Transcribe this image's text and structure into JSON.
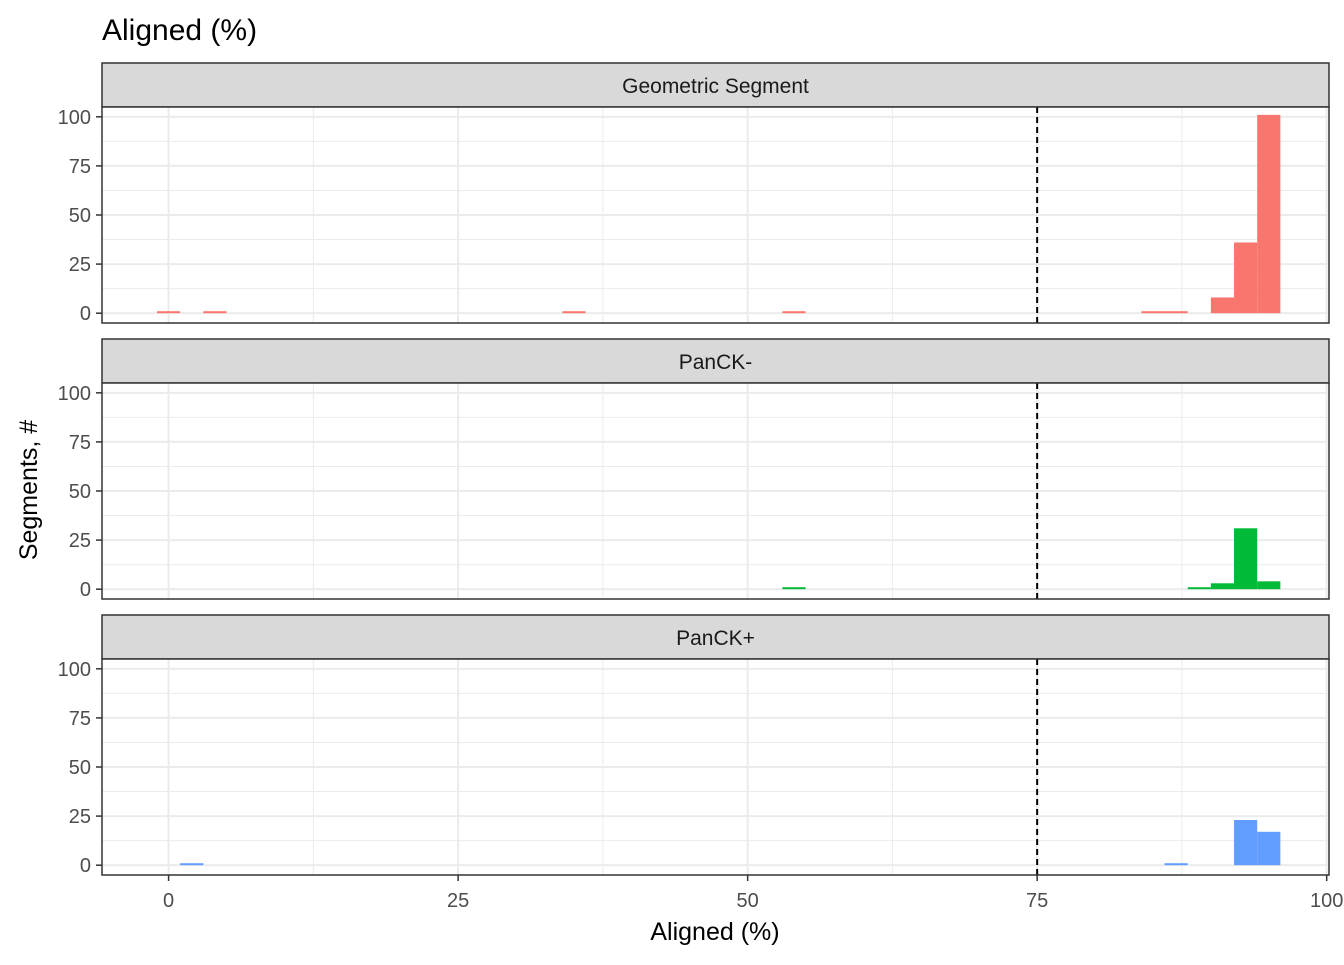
{
  "chart_data": {
    "type": "bar",
    "title": "Aligned (%)",
    "xlabel": "Aligned (%)",
    "ylabel": "Segments, #",
    "xlim": [
      -5.75,
      100.2
    ],
    "ylim": [
      -5,
      105
    ],
    "x_ticks": [
      0,
      25,
      50,
      75,
      100
    ],
    "x_tick_labels": [
      "0",
      "25",
      "50",
      "75",
      "100"
    ],
    "y_ticks": [
      0,
      25,
      50,
      75,
      100
    ],
    "y_tick_labels": [
      "0",
      "25",
      "50",
      "75",
      "100"
    ],
    "grid": true,
    "threshold_line": {
      "x": 75,
      "style": "dashed",
      "color": "#000000"
    },
    "panels": [
      {
        "name": "Geometric Segment",
        "color": "#F8766D",
        "bins": [
          {
            "x0": -1,
            "x1": 1,
            "count": 1
          },
          {
            "x0": 3,
            "x1": 5,
            "count": 1
          },
          {
            "x0": 34,
            "x1": 36,
            "count": 1
          },
          {
            "x0": 53,
            "x1": 55,
            "count": 1
          },
          {
            "x0": 84,
            "x1": 86,
            "count": 1
          },
          {
            "x0": 86,
            "x1": 88,
            "count": 1
          },
          {
            "x0": 90,
            "x1": 92,
            "count": 8
          },
          {
            "x0": 92,
            "x1": 94,
            "count": 36
          },
          {
            "x0": 94,
            "x1": 96,
            "count": 101
          }
        ]
      },
      {
        "name": "PanCK-",
        "color": "#00BA38",
        "bins": [
          {
            "x0": 53,
            "x1": 55,
            "count": 1
          },
          {
            "x0": 88,
            "x1": 90,
            "count": 1
          },
          {
            "x0": 90,
            "x1": 92,
            "count": 3
          },
          {
            "x0": 92,
            "x1": 94,
            "count": 31
          },
          {
            "x0": 94,
            "x1": 96,
            "count": 4
          }
        ]
      },
      {
        "name": "PanCK+",
        "color": "#619CFF",
        "bins": [
          {
            "x0": 1,
            "x1": 3,
            "count": 1
          },
          {
            "x0": 86,
            "x1": 88,
            "count": 1
          },
          {
            "x0": 92,
            "x1": 94,
            "count": 23
          },
          {
            "x0": 94,
            "x1": 96,
            "count": 17
          }
        ]
      }
    ]
  }
}
